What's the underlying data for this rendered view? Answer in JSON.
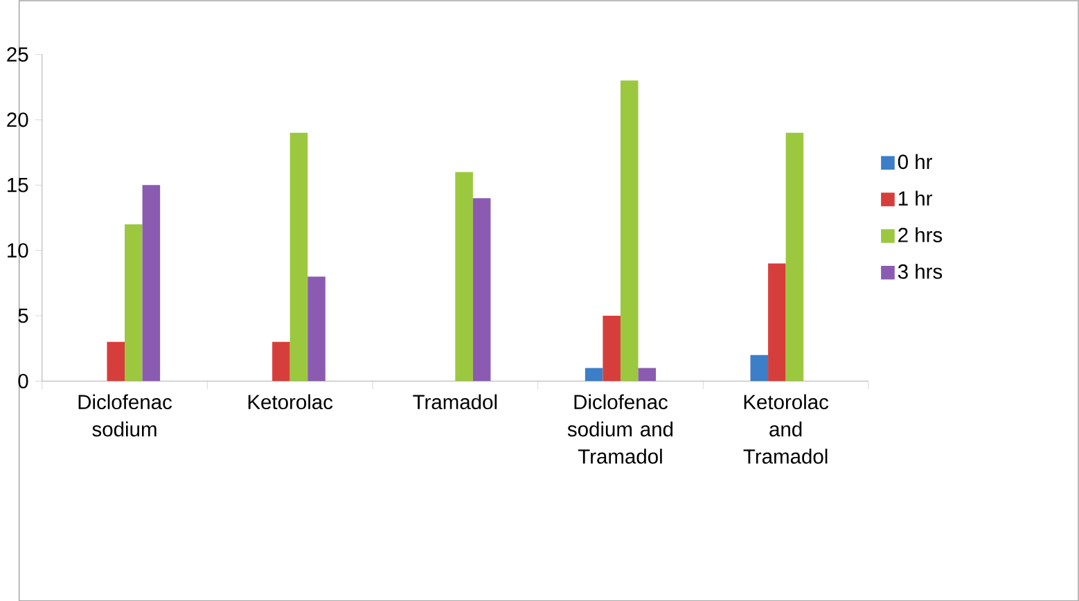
{
  "chart_data": {
    "type": "bar",
    "categories": [
      "Diclofenac sodium",
      "Ketorolac",
      "Tramadol",
      "Diclofenac sodium and Tramadol",
      "Ketorolac and Tramadol"
    ],
    "series": [
      {
        "name": "0 hr",
        "color": "#3c7ec8",
        "values": [
          0,
          0,
          0,
          1,
          2
        ]
      },
      {
        "name": "1 hr",
        "color": "#d63e3b",
        "values": [
          3,
          3,
          0,
          5,
          9
        ]
      },
      {
        "name": "2 hrs",
        "color": "#9bc83f",
        "values": [
          12,
          19,
          16,
          23,
          19
        ]
      },
      {
        "name": "3 hrs",
        "color": "#8a5bb0",
        "values": [
          15,
          8,
          14,
          1,
          0
        ]
      }
    ],
    "ylim": [
      0,
      25
    ],
    "yticks": [
      0,
      5,
      10,
      15,
      20,
      25
    ],
    "grid": false,
    "legend": "right"
  }
}
